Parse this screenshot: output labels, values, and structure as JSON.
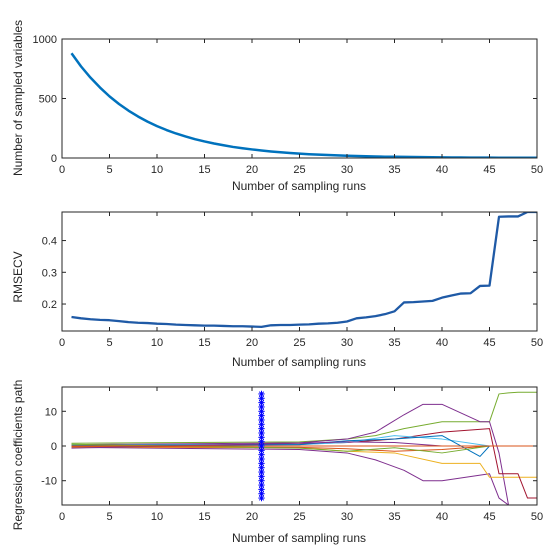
{
  "figure": {
    "background": "#ffffff",
    "axis_color": "#262626"
  },
  "chart_data": [
    {
      "type": "line",
      "title": "",
      "xlabel": "Number of sampling runs",
      "ylabel": "Number of sampled variables",
      "xlim": [
        0,
        50
      ],
      "ylim": [
        0,
        1000
      ],
      "xticks": [
        0,
        5,
        10,
        15,
        20,
        25,
        30,
        35,
        40,
        45,
        50
      ],
      "yticks": [
        0,
        500,
        1000
      ],
      "grid": false,
      "series": [
        {
          "color": "#0072BD",
          "x": [
            1,
            2,
            3,
            4,
            5,
            6,
            7,
            8,
            9,
            10,
            11,
            12,
            13,
            14,
            15,
            16,
            17,
            18,
            19,
            20,
            21,
            22,
            23,
            24,
            25,
            26,
            27,
            28,
            29,
            30,
            31,
            32,
            33,
            34,
            35,
            36,
            37,
            38,
            39,
            40,
            41,
            42,
            43,
            44,
            45,
            46,
            47,
            48,
            49,
            50
          ],
          "y": [
            880,
            770,
            675,
            592,
            518,
            454,
            398,
            349,
            306,
            268,
            235,
            206,
            181,
            158,
            139,
            122,
            107,
            93,
            82,
            72,
            63,
            55,
            48,
            42,
            37,
            32,
            28,
            25,
            22,
            19,
            17,
            15,
            13,
            11,
            10,
            9,
            8,
            7,
            6,
            5,
            4,
            4,
            3,
            3,
            3,
            2,
            2,
            2,
            2,
            2
          ]
        }
      ]
    },
    {
      "type": "line",
      "title": "",
      "xlabel": "Number of sampling runs",
      "ylabel": "RMSECV",
      "xlim": [
        0,
        50
      ],
      "ylim": [
        0.115,
        0.49
      ],
      "xticks": [
        0,
        5,
        10,
        15,
        20,
        25,
        30,
        35,
        40,
        45,
        50
      ],
      "yticks": [
        0.2,
        0.3,
        0.4
      ],
      "ytick_labels": [
        "0.2",
        "0.3",
        "0.4"
      ],
      "grid": false,
      "series": [
        {
          "color": "#1f5aa6",
          "x": [
            1,
            2,
            3,
            4,
            5,
            6,
            7,
            8,
            9,
            10,
            11,
            12,
            13,
            14,
            15,
            16,
            17,
            18,
            19,
            20,
            21,
            22,
            23,
            24,
            25,
            26,
            27,
            28,
            29,
            30,
            31,
            32,
            33,
            34,
            35,
            36,
            37,
            38,
            39,
            40,
            41,
            42,
            43,
            44,
            45,
            46,
            47,
            48,
            49,
            50
          ],
          "y": [
            0.159,
            0.155,
            0.152,
            0.15,
            0.149,
            0.146,
            0.143,
            0.141,
            0.14,
            0.138,
            0.137,
            0.135,
            0.134,
            0.133,
            0.132,
            0.132,
            0.131,
            0.13,
            0.13,
            0.129,
            0.128,
            0.133,
            0.134,
            0.134,
            0.135,
            0.136,
            0.138,
            0.139,
            0.141,
            0.145,
            0.155,
            0.158,
            0.162,
            0.168,
            0.177,
            0.205,
            0.206,
            0.208,
            0.21,
            0.22,
            0.227,
            0.233,
            0.234,
            0.257,
            0.258,
            0.475,
            0.476,
            0.476,
            0.49,
            0.49
          ]
        }
      ]
    },
    {
      "type": "line",
      "title": "",
      "xlabel": "Number of sampling runs",
      "ylabel": "Regression coefficients path",
      "xlim": [
        0,
        50
      ],
      "ylim": [
        -17,
        17
      ],
      "xticks": [
        0,
        5,
        10,
        15,
        20,
        25,
        30,
        35,
        40,
        45,
        50
      ],
      "yticks": [
        -10,
        0,
        10
      ],
      "grid": false,
      "marker": {
        "x": 21,
        "ymin": -15,
        "ymax": 15,
        "color": "#0000ff"
      },
      "series": [
        {
          "color": "#77AC30",
          "x": [
            1,
            25,
            30,
            33,
            36,
            40,
            44,
            45,
            46,
            47,
            48,
            49,
            50
          ],
          "y": [
            0.8,
            1.2,
            2,
            3,
            5,
            7,
            7,
            7,
            15,
            15.3,
            15.5,
            15.5,
            15.5
          ]
        },
        {
          "color": "#7E2F8E",
          "x": [
            1,
            25,
            30,
            33,
            36,
            38,
            40,
            44,
            45,
            46,
            47,
            50
          ],
          "y": [
            0.4,
            0.9,
            2,
            4,
            9,
            12,
            12,
            7,
            7,
            -2,
            -17,
            -17
          ]
        },
        {
          "color": "#7E2F8E",
          "x": [
            1,
            25,
            30,
            33,
            36,
            38,
            40,
            45,
            46,
            47,
            50
          ],
          "y": [
            -0.4,
            -1,
            -2,
            -4,
            -7,
            -10,
            -10,
            -8,
            -15,
            -17,
            -17
          ]
        },
        {
          "color": "#EDB120",
          "x": [
            1,
            25,
            30,
            35,
            40,
            44,
            45,
            46,
            50
          ],
          "y": [
            -0.3,
            -0.5,
            -1.5,
            -2,
            -5,
            -5,
            -9,
            -9,
            -9
          ]
        },
        {
          "color": "#A2142F",
          "x": [
            1,
            25,
            30,
            35,
            40,
            45,
            46,
            47,
            48,
            49,
            50
          ],
          "y": [
            0.2,
            0.5,
            1,
            2,
            4,
            5,
            -8,
            -8,
            -8,
            -15,
            -15
          ]
        },
        {
          "color": "#4DBEEE",
          "x": [
            1,
            25,
            30,
            35,
            40,
            45,
            50
          ],
          "y": [
            0.3,
            0.4,
            1,
            3,
            2,
            0,
            0
          ]
        },
        {
          "color": "#0072BD",
          "x": [
            1,
            25,
            30,
            35,
            40,
            44,
            45,
            50
          ],
          "y": [
            0.1,
            0.4,
            1.5,
            2,
            3,
            -3,
            0,
            0
          ]
        },
        {
          "color": "#D95319",
          "x": [
            1,
            25,
            30,
            35,
            40,
            45,
            50
          ],
          "y": [
            -0.2,
            -0.4,
            -0.8,
            -1.5,
            -1,
            0,
            0
          ]
        },
        {
          "color": "#77AC30",
          "x": [
            1,
            25,
            30,
            35,
            40,
            45,
            50
          ],
          "y": [
            0.5,
            -0.6,
            -1.5,
            -0.5,
            -2,
            0,
            0
          ]
        },
        {
          "color": "#7E2F8E",
          "x": [
            1,
            25,
            30,
            35,
            40,
            45,
            50
          ],
          "y": [
            -0.6,
            0.8,
            1.2,
            1,
            0,
            0,
            0
          ]
        },
        {
          "color": "#D95319",
          "x": [
            1,
            50
          ],
          "y": [
            0,
            0
          ]
        }
      ]
    }
  ]
}
